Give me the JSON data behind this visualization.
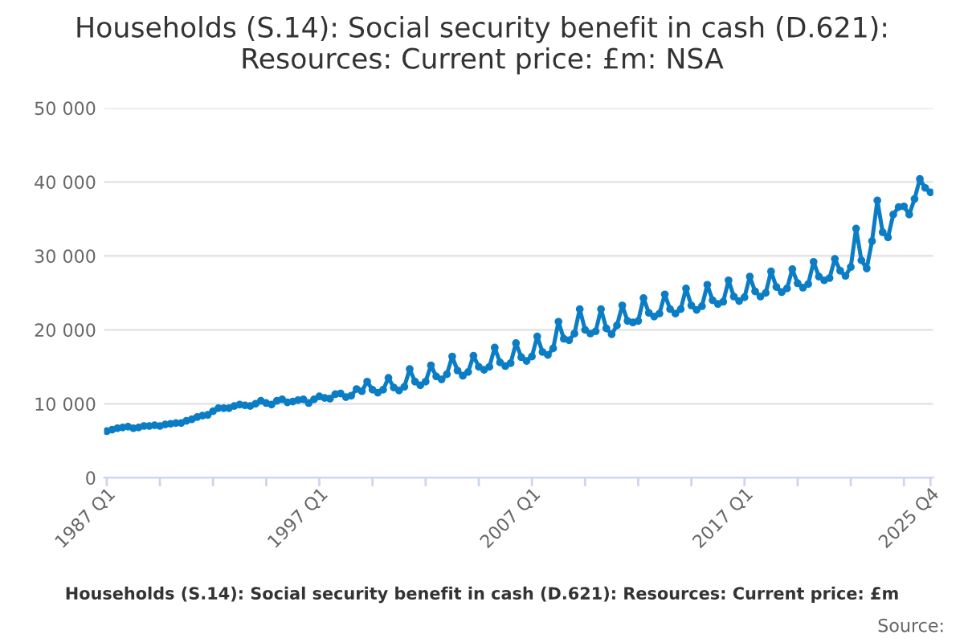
{
  "chart_data": {
    "type": "line",
    "title": "Households (S.14): Social security benefit in cash (D.621):\nResources: Current price: £m: NSA",
    "categories": [
      "1987 Q1",
      null,
      null,
      null,
      null,
      null,
      null,
      null,
      null,
      null,
      null,
      null,
      null,
      null,
      null,
      null,
      null,
      null,
      null,
      null,
      null,
      null,
      null,
      null,
      null,
      null,
      null,
      null,
      null,
      null,
      null,
      null,
      null,
      null,
      null,
      null,
      null,
      null,
      null,
      null,
      "1997 Q1",
      null,
      null,
      null,
      null,
      null,
      null,
      null,
      null,
      null,
      null,
      null,
      null,
      null,
      null,
      null,
      null,
      null,
      null,
      null,
      null,
      null,
      null,
      null,
      null,
      null,
      null,
      null,
      null,
      null,
      null,
      null,
      null,
      null,
      null,
      null,
      null,
      null,
      null,
      null,
      "2007 Q1",
      null,
      null,
      null,
      null,
      null,
      null,
      null,
      null,
      null,
      null,
      null,
      null,
      null,
      null,
      null,
      null,
      null,
      null,
      null,
      null,
      null,
      null,
      null,
      null,
      null,
      null,
      null,
      null,
      null,
      null,
      null,
      null,
      null,
      null,
      null,
      null,
      null,
      null,
      null,
      "2017 Q1",
      null,
      null,
      null,
      null,
      null,
      null,
      null,
      null,
      null,
      null,
      null,
      null,
      null,
      null,
      null,
      null,
      null,
      null,
      null,
      null,
      null,
      null,
      null,
      null,
      null,
      null,
      null,
      null,
      null,
      null,
      null,
      null,
      null,
      null,
      "2025 Q4"
    ],
    "series": [
      {
        "color": "#0b7dc5",
        "values": [
          6300,
          6500,
          6700,
          6800,
          6900,
          6700,
          6800,
          7000,
          7000,
          7100,
          7000,
          7200,
          7300,
          7400,
          7400,
          7700,
          7900,
          8200,
          8400,
          8500,
          9000,
          9400,
          9400,
          9400,
          9700,
          9900,
          9800,
          9700,
          10000,
          10400,
          10100,
          9900,
          10400,
          10600,
          10200,
          10300,
          10500,
          10600,
          10100,
          10600,
          11000,
          10800,
          10700,
          11300,
          11400,
          10900,
          11100,
          12000,
          11700,
          13000,
          11900,
          11500,
          11900,
          13500,
          12200,
          11800,
          12300,
          14700,
          13000,
          12500,
          13000,
          15200,
          13700,
          13300,
          14000,
          16400,
          14500,
          13800,
          14300,
          16500,
          15000,
          14600,
          15000,
          17600,
          15600,
          15100,
          15500,
          18200,
          16300,
          15800,
          16400,
          19100,
          17000,
          16600,
          17500,
          21100,
          18800,
          18600,
          19500,
          22800,
          20000,
          19500,
          19800,
          22800,
          20200,
          19400,
          20600,
          23300,
          21200,
          21000,
          21200,
          24300,
          22300,
          21800,
          22200,
          24800,
          22800,
          22200,
          22800,
          25600,
          23300,
          22700,
          23200,
          26100,
          24000,
          23500,
          23800,
          26700,
          24500,
          23900,
          24400,
          27200,
          25200,
          24500,
          25000,
          27900,
          25800,
          25100,
          25600,
          28200,
          26300,
          25700,
          26200,
          29200,
          27200,
          26700,
          27000,
          29600,
          28000,
          27300,
          28500,
          33700,
          29400,
          28300,
          32000,
          37500,
          33200,
          32500,
          35600,
          36600,
          36700,
          35600,
          37700,
          40400,
          39200,
          38600
        ]
      }
    ],
    "ylim": [
      0,
      50000
    ],
    "yticks": [
      0,
      {
        "value": 10000,
        "label": "10 000"
      },
      {
        "value": 20000,
        "label": "20 000"
      },
      {
        "value": 30000,
        "label": "30 000"
      },
      {
        "value": 40000,
        "label": "40 000"
      },
      {
        "value": 50000,
        "label": "50 000"
      }
    ],
    "grid": "y",
    "legend": false,
    "marker": "circle",
    "line_style": "solid",
    "annotations": [
      "Households (S.14): Social security benefit in cash (D.621): Resources: Current price: £m",
      "Source:"
    ]
  }
}
